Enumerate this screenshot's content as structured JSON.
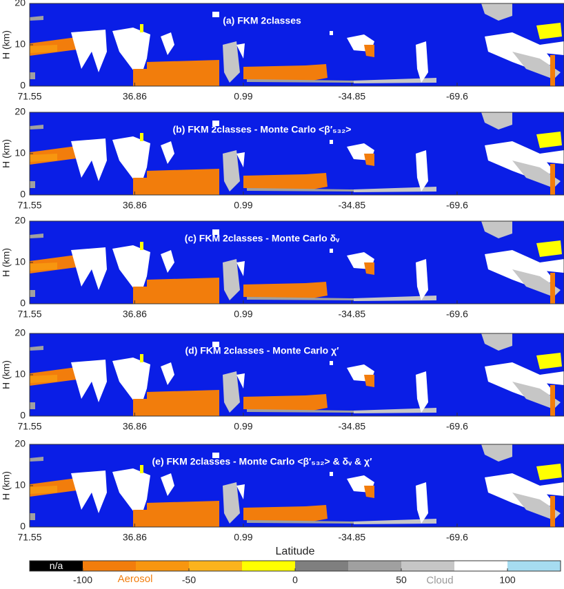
{
  "chart_data": [
    {
      "type": "curtain",
      "title": "(a) FKM 2classes",
      "ylabel": "H (km)",
      "ylim": [
        0,
        20
      ],
      "yticks": [
        0,
        10,
        20
      ],
      "xlim": [
        71.55,
        -104.9
      ],
      "xticks": [
        71.55,
        36.86,
        0.99,
        -34.85,
        -69.6
      ]
    },
    {
      "type": "curtain",
      "title": "(b) FKM 2classes - Monte Carlo <β′₅₃₂>",
      "ylabel": "H (km)",
      "ylim": [
        0,
        20
      ],
      "yticks": [
        0,
        10,
        20
      ],
      "xlim": [
        71.55,
        -104.9
      ],
      "xticks": [
        71.55,
        36.86,
        0.99,
        -34.85,
        -69.6
      ]
    },
    {
      "type": "curtain",
      "title": "(c) FKM 2classes - Monte Carlo δᵥ",
      "ylabel": "H (km)",
      "ylim": [
        0,
        20
      ],
      "yticks": [
        0,
        10,
        20
      ],
      "xlim": [
        71.55,
        -104.9
      ],
      "xticks": [
        71.55,
        36.86,
        0.99,
        -34.85,
        -69.6
      ]
    },
    {
      "type": "curtain",
      "title": "(d) FKM 2classes - Monte Carlo χ′",
      "ylabel": "H (km)",
      "ylim": [
        0,
        20
      ],
      "yticks": [
        0,
        10,
        20
      ],
      "xlim": [
        71.55,
        -104.9
      ],
      "xticks": [
        71.55,
        36.86,
        0.99,
        -34.85,
        -69.6
      ]
    },
    {
      "type": "curtain",
      "title": "(e) FKM 2classes - Monte Carlo <β′₅₃₂> & δᵥ & χ′",
      "ylabel": "H (km)",
      "xlabel": "Latitude",
      "ylim": [
        0,
        20
      ],
      "yticks": [
        0,
        10,
        20
      ],
      "xlim": [
        71.55,
        -104.9
      ],
      "xticks": [
        71.55,
        36.86,
        0.99,
        -34.85,
        -69.6
      ]
    },
    {
      "type": "colorbar",
      "na_label": "n/a",
      "aerosol_label": "Aerosol",
      "cloud_label": "Cloud",
      "clim": [
        -125,
        125
      ],
      "ticks": [
        -100,
        -50,
        0,
        50,
        100
      ],
      "colors": [
        "#000000",
        "#f27d0c",
        "#f7960f",
        "#fbb31c",
        "#ffff00",
        "#7f7f7f",
        "#a0a0a0",
        "#c6c6c6",
        "#ffffff",
        "#a6dcf0"
      ],
      "background": "#0a1ee6"
    }
  ]
}
